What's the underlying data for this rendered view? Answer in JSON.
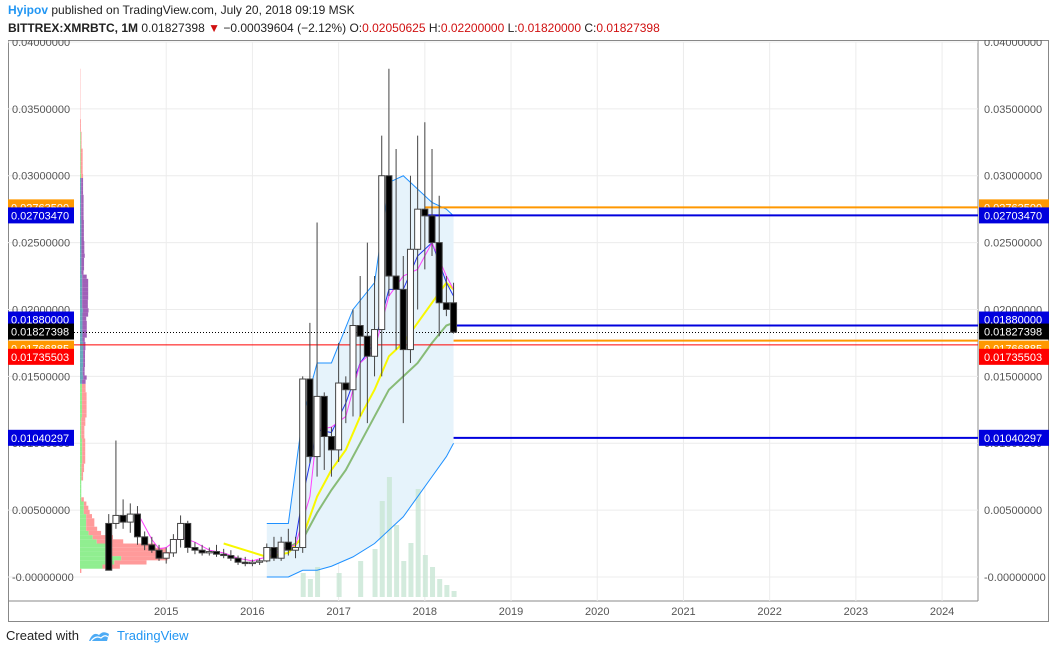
{
  "header": {
    "author": "Hyipov",
    "published": " published on TradingView.com, July 20, 2018 09:19 MSK",
    "symbol": "BITTREX:XMRBTC, 1M",
    "last": "0.01827398",
    "change_arrow": "▼",
    "change": "−0.00039604 (−2.12%)",
    "o_label": "O:",
    "o_value": "0.02050625",
    "h_label": "H:",
    "h_value": "0.02200000",
    "l_label": "L:",
    "l_value": "0.01820000",
    "c_label": "C:",
    "c_value": "0.01827398"
  },
  "footer": {
    "created_with": "Created with",
    "brand": "TradingView"
  },
  "colors": {
    "up": "#ffffff",
    "down": "#000000",
    "candle_border": "#444444",
    "sma_fast": "#ff40ff",
    "ema_blue": "#2233ee",
    "sma_yellow": "#f8f800",
    "sma_green": "#88bb77",
    "bollinger": "#1e90ff",
    "bollinger_fill": "#e6f3fb",
    "level_orange": "#ff9800",
    "level_blue": "#0000dd",
    "level_red": "#ff0000",
    "vp_up": "#90ee90",
    "vp_down": "#ff9a9a",
    "vp_va_up": "#66aabb",
    "vp_va_down": "#a060b8"
  },
  "chart_data": {
    "type": "candlestick",
    "x_axis": {
      "ticks": [
        "2015",
        "2016",
        "2017",
        "2018",
        "2019",
        "2020",
        "2021",
        "2022",
        "2023",
        "2024"
      ],
      "range": [
        "2014-01",
        "2024-06"
      ]
    },
    "y_axis": {
      "ticks": [
        "0.04000000",
        "0.03500000",
        "0.03000000",
        "0.02500000",
        "0.02000000",
        "0.01500000",
        "0.01000000",
        "0.00500000",
        "-0.00000000"
      ],
      "range": [
        -0.0015,
        0.04
      ]
    },
    "candles": [
      {
        "t": "2014-05",
        "o": 0.004,
        "h": 0.0047,
        "l": 0.0005,
        "c": 0.0005
      },
      {
        "t": "2014-06",
        "o": 0.004,
        "h": 0.0102,
        "l": 0.0036,
        "c": 0.0046
      },
      {
        "t": "2014-07",
        "o": 0.0046,
        "h": 0.0058,
        "l": 0.0036,
        "c": 0.0041
      },
      {
        "t": "2014-08",
        "o": 0.0041,
        "h": 0.0055,
        "l": 0.0033,
        "c": 0.0047
      },
      {
        "t": "2014-09",
        "o": 0.0047,
        "h": 0.0053,
        "l": 0.0024,
        "c": 0.003
      },
      {
        "t": "2014-10",
        "o": 0.003,
        "h": 0.0034,
        "l": 0.002,
        "c": 0.0024
      },
      {
        "t": "2014-11",
        "o": 0.0024,
        "h": 0.003,
        "l": 0.0018,
        "c": 0.002
      },
      {
        "t": "2014-12",
        "o": 0.002,
        "h": 0.0024,
        "l": 0.0012,
        "c": 0.0014
      },
      {
        "t": "2015-01",
        "o": 0.0014,
        "h": 0.0022,
        "l": 0.001,
        "c": 0.0018
      },
      {
        "t": "2015-02",
        "o": 0.0018,
        "h": 0.0032,
        "l": 0.0015,
        "c": 0.0028
      },
      {
        "t": "2015-03",
        "o": 0.0028,
        "h": 0.0046,
        "l": 0.0022,
        "c": 0.004
      },
      {
        "t": "2015-04",
        "o": 0.004,
        "h": 0.0042,
        "l": 0.0018,
        "c": 0.0022
      },
      {
        "t": "2015-05",
        "o": 0.0022,
        "h": 0.0026,
        "l": 0.0017,
        "c": 0.002
      },
      {
        "t": "2015-06",
        "o": 0.002,
        "h": 0.0024,
        "l": 0.0016,
        "c": 0.0018
      },
      {
        "t": "2015-07",
        "o": 0.0018,
        "h": 0.0022,
        "l": 0.0016,
        "c": 0.0019
      },
      {
        "t": "2015-08",
        "o": 0.0019,
        "h": 0.0024,
        "l": 0.0015,
        "c": 0.0017
      },
      {
        "t": "2015-09",
        "o": 0.0017,
        "h": 0.0021,
        "l": 0.0014,
        "c": 0.0016
      },
      {
        "t": "2015-10",
        "o": 0.0016,
        "h": 0.002,
        "l": 0.0012,
        "c": 0.0014
      },
      {
        "t": "2015-11",
        "o": 0.0014,
        "h": 0.0016,
        "l": 0.0009,
        "c": 0.0011
      },
      {
        "t": "2015-12",
        "o": 0.0011,
        "h": 0.0015,
        "l": 0.0008,
        "c": 0.001
      },
      {
        "t": "2016-01",
        "o": 0.001,
        "h": 0.0013,
        "l": 0.0008,
        "c": 0.0011
      },
      {
        "t": "2016-02",
        "o": 0.0011,
        "h": 0.0014,
        "l": 0.0009,
        "c": 0.0012
      },
      {
        "t": "2016-03",
        "o": 0.0012,
        "h": 0.0025,
        "l": 0.0011,
        "c": 0.0022
      },
      {
        "t": "2016-04",
        "o": 0.0022,
        "h": 0.003,
        "l": 0.0012,
        "c": 0.0014
      },
      {
        "t": "2016-05",
        "o": 0.0014,
        "h": 0.003,
        "l": 0.0012,
        "c": 0.0026
      },
      {
        "t": "2016-06",
        "o": 0.0026,
        "h": 0.0036,
        "l": 0.0016,
        "c": 0.002
      },
      {
        "t": "2016-07",
        "o": 0.002,
        "h": 0.003,
        "l": 0.0014,
        "c": 0.0022
      },
      {
        "t": "2016-08",
        "o": 0.0022,
        "h": 0.015,
        "l": 0.0018,
        "c": 0.0148
      },
      {
        "t": "2016-09",
        "o": 0.0148,
        "h": 0.019,
        "l": 0.0085,
        "c": 0.009
      },
      {
        "t": "2016-10",
        "o": 0.009,
        "h": 0.0265,
        "l": 0.0075,
        "c": 0.0135
      },
      {
        "t": "2016-11",
        "o": 0.0135,
        "h": 0.0138,
        "l": 0.008,
        "c": 0.0105
      },
      {
        "t": "2016-12",
        "o": 0.0105,
        "h": 0.0112,
        "l": 0.0075,
        "c": 0.0095
      },
      {
        "t": "2017-01",
        "o": 0.0095,
        "h": 0.0175,
        "l": 0.0086,
        "c": 0.0145
      },
      {
        "t": "2017-02",
        "o": 0.0145,
        "h": 0.015,
        "l": 0.0115,
        "c": 0.014
      },
      {
        "t": "2017-03",
        "o": 0.014,
        "h": 0.02,
        "l": 0.012,
        "c": 0.0188
      },
      {
        "t": "2017-04",
        "o": 0.0188,
        "h": 0.0225,
        "l": 0.012,
        "c": 0.018
      },
      {
        "t": "2017-05",
        "o": 0.018,
        "h": 0.025,
        "l": 0.0115,
        "c": 0.0165
      },
      {
        "t": "2017-06",
        "o": 0.0165,
        "h": 0.0225,
        "l": 0.015,
        "c": 0.0185
      },
      {
        "t": "2017-07",
        "o": 0.0185,
        "h": 0.033,
        "l": 0.015,
        "c": 0.03
      },
      {
        "t": "2017-08",
        "o": 0.03,
        "h": 0.038,
        "l": 0.021,
        "c": 0.0225
      },
      {
        "t": "2017-09",
        "o": 0.0225,
        "h": 0.032,
        "l": 0.017,
        "c": 0.0215
      },
      {
        "t": "2017-10",
        "o": 0.0215,
        "h": 0.024,
        "l": 0.0115,
        "c": 0.017
      },
      {
        "t": "2017-11",
        "o": 0.017,
        "h": 0.03,
        "l": 0.016,
        "c": 0.0245
      },
      {
        "t": "2017-12",
        "o": 0.0245,
        "h": 0.033,
        "l": 0.02,
        "c": 0.0275
      },
      {
        "t": "2018-01",
        "o": 0.0275,
        "h": 0.034,
        "l": 0.023,
        "c": 0.027
      },
      {
        "t": "2018-02",
        "o": 0.027,
        "h": 0.032,
        "l": 0.024,
        "c": 0.025
      },
      {
        "t": "2018-03",
        "o": 0.025,
        "h": 0.0285,
        "l": 0.018,
        "c": 0.0205
      },
      {
        "t": "2018-04",
        "o": 0.0205,
        "h": 0.0225,
        "l": 0.0195,
        "c": 0.02
      },
      {
        "t": "2018-05",
        "o": 0.0205,
        "h": 0.022,
        "l": 0.0182,
        "c": 0.0183
      }
    ],
    "indicators": {
      "sma_fast": [
        [
          "2014-09",
          0.0048
        ],
        [
          "2014-10",
          0.0038
        ],
        [
          "2014-11",
          0.0028
        ],
        [
          "2014-12",
          0.0021
        ],
        [
          "2015-01",
          0.0022
        ],
        [
          "2015-03",
          0.003
        ],
        [
          "2015-05",
          0.0026
        ],
        [
          "2015-07",
          0.002
        ],
        [
          "2015-09",
          0.0018
        ],
        [
          "2015-11",
          0.0014
        ],
        [
          "2016-01",
          0.0012
        ],
        [
          "2016-03",
          0.0015
        ],
        [
          "2016-05",
          0.002
        ],
        [
          "2016-07",
          0.0024
        ],
        [
          "2016-09",
          0.006
        ],
        [
          "2016-10",
          0.011
        ],
        [
          "2016-12",
          0.0112
        ],
        [
          "2017-02",
          0.012
        ],
        [
          "2017-04",
          0.016
        ],
        [
          "2017-06",
          0.017
        ],
        [
          "2017-08",
          0.021
        ],
        [
          "2017-10",
          0.0225
        ],
        [
          "2017-12",
          0.023
        ],
        [
          "2018-02",
          0.025
        ],
        [
          "2018-04",
          0.0225
        ],
        [
          "2018-05",
          0.0215
        ]
      ],
      "ema_blue": [
        [
          "2016-07",
          0.0028
        ],
        [
          "2016-08",
          0.006
        ],
        [
          "2016-09",
          0.0085
        ],
        [
          "2016-10",
          0.011
        ],
        [
          "2016-12",
          0.0108
        ],
        [
          "2017-02",
          0.013
        ],
        [
          "2017-04",
          0.016
        ],
        [
          "2017-06",
          0.0175
        ],
        [
          "2017-08",
          0.0215
        ],
        [
          "2017-10",
          0.0215
        ],
        [
          "2017-12",
          0.024
        ],
        [
          "2018-02",
          0.025
        ],
        [
          "2018-04",
          0.022
        ],
        [
          "2018-05",
          0.021
        ]
      ],
      "sma_yellow": [
        [
          "2015-09",
          0.0025
        ],
        [
          "2015-12",
          0.002
        ],
        [
          "2016-03",
          0.0015
        ],
        [
          "2016-06",
          0.0018
        ],
        [
          "2016-08",
          0.003
        ],
        [
          "2016-10",
          0.006
        ],
        [
          "2016-12",
          0.008
        ],
        [
          "2017-02",
          0.0095
        ],
        [
          "2017-04",
          0.012
        ],
        [
          "2017-06",
          0.014
        ],
        [
          "2017-08",
          0.0165
        ],
        [
          "2017-10",
          0.0175
        ],
        [
          "2017-12",
          0.019
        ],
        [
          "2018-02",
          0.0205
        ],
        [
          "2018-04",
          0.022
        ],
        [
          "2018-05",
          0.0215
        ]
      ],
      "sma_green": [
        [
          "2016-03",
          0.002
        ],
        [
          "2016-06",
          0.0022
        ],
        [
          "2016-08",
          0.0028
        ],
        [
          "2016-10",
          0.0048
        ],
        [
          "2016-12",
          0.0065
        ],
        [
          "2017-02",
          0.008
        ],
        [
          "2017-04",
          0.01
        ],
        [
          "2017-06",
          0.012
        ],
        [
          "2017-08",
          0.014
        ],
        [
          "2017-10",
          0.015
        ],
        [
          "2017-12",
          0.016
        ],
        [
          "2018-02",
          0.0175
        ],
        [
          "2018-04",
          0.0188
        ],
        [
          "2018-05",
          0.019
        ]
      ],
      "bollinger_upper": [
        [
          "2016-03",
          0.004
        ],
        [
          "2016-06",
          0.004
        ],
        [
          "2016-08",
          0.012
        ],
        [
          "2016-10",
          0.016
        ],
        [
          "2016-12",
          0.016
        ],
        [
          "2017-03",
          0.02
        ],
        [
          "2017-06",
          0.022
        ],
        [
          "2017-08",
          0.0295
        ],
        [
          "2017-10",
          0.03
        ],
        [
          "2017-12",
          0.029
        ],
        [
          "2018-02",
          0.028
        ],
        [
          "2018-04",
          0.0275
        ],
        [
          "2018-05",
          0.027
        ]
      ],
      "bollinger_lower": [
        [
          "2016-03",
          0.0
        ],
        [
          "2016-06",
          0.0
        ],
        [
          "2016-08",
          0.0005
        ],
        [
          "2016-10",
          0.0005
        ],
        [
          "2016-12",
          0.0008
        ],
        [
          "2017-03",
          0.0015
        ],
        [
          "2017-06",
          0.0025
        ],
        [
          "2017-08",
          0.0035
        ],
        [
          "2017-10",
          0.0045
        ],
        [
          "2017-12",
          0.006
        ],
        [
          "2018-02",
          0.0075
        ],
        [
          "2018-04",
          0.009
        ],
        [
          "2018-05",
          0.01
        ]
      ]
    },
    "levels": [
      {
        "value": 0.027635,
        "label": "0.02763500",
        "color": "#ff9800",
        "from": "2018-01"
      },
      {
        "value": 0.0270347,
        "label": "0.02703470",
        "color": "#0000dd",
        "from": "2018-01"
      },
      {
        "value": 0.0188,
        "label": "0.01880000",
        "color": "#0000dd",
        "from": "2018-05"
      },
      {
        "value": 0.01827398,
        "label": "0.01827398",
        "color": "#000000",
        "from": "2014-01",
        "dotted": true
      },
      {
        "value": 0.01766885,
        "label": "0.01766885",
        "color": "#ff9800",
        "from": "2018-05"
      },
      {
        "value": 0.01735503,
        "label": "0.01735503",
        "color": "#ff0000",
        "from": "2014-01"
      },
      {
        "value": 0.01040297,
        "label": "0.01040297",
        "color": "#0000dd",
        "from": "2018-05"
      }
    ],
    "volume_profile": {
      "rows": 120
    },
    "volume_bars": [
      [
        "2016-08",
        0.2
      ],
      [
        "2016-09",
        0.15
      ],
      [
        "2016-10",
        0.25
      ],
      [
        "2017-01",
        0.2
      ],
      [
        "2017-04",
        0.3
      ],
      [
        "2017-06",
        0.4
      ],
      [
        "2017-07",
        0.8
      ],
      [
        "2017-08",
        1.0
      ],
      [
        "2017-09",
        0.6
      ],
      [
        "2017-10",
        0.3
      ],
      [
        "2017-11",
        0.45
      ],
      [
        "2017-12",
        0.9
      ],
      [
        "2018-01",
        0.35
      ],
      [
        "2018-02",
        0.25
      ],
      [
        "2018-03",
        0.15
      ],
      [
        "2018-04",
        0.1
      ],
      [
        "2018-05",
        0.05
      ]
    ]
  }
}
